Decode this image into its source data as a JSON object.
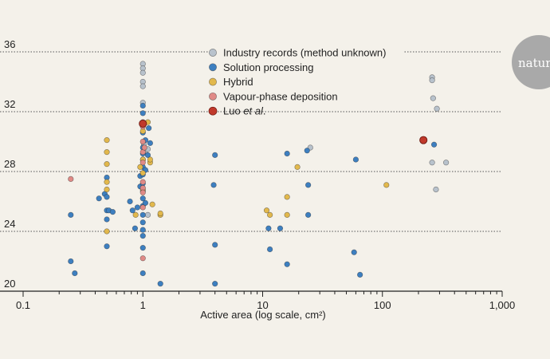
{
  "brand": {
    "logo_text": "nature"
  },
  "chart_data": {
    "type": "scatter",
    "title": "",
    "xlabel": "Active area (log scale, cm²)",
    "ylabel": "",
    "xscale": "log",
    "xlim": [
      0.1,
      1000
    ],
    "ylim": [
      20,
      37
    ],
    "x_ticks": [
      0.1,
      1,
      10,
      100,
      1000
    ],
    "x_tick_labels": [
      "0.1",
      "1",
      "10",
      "100",
      "1,000"
    ],
    "y_ticks": [
      20,
      24,
      28,
      32,
      36
    ],
    "y_tick_labels": [
      "20",
      "24",
      "28",
      "32",
      "36"
    ],
    "grid": "horizontal dotted",
    "legend_position": "top-center",
    "series": [
      {
        "name": "Industry records (method unknown)",
        "color": "#b8c2cc",
        "points": [
          {
            "x": 1.0,
            "y": 35.2
          },
          {
            "x": 1.0,
            "y": 34.9
          },
          {
            "x": 1.0,
            "y": 34.6
          },
          {
            "x": 1.0,
            "y": 34.0
          },
          {
            "x": 1.0,
            "y": 33.7
          },
          {
            "x": 1.0,
            "y": 32.6
          },
          {
            "x": 1.02,
            "y": 29.8
          },
          {
            "x": 1.05,
            "y": 29.4
          },
          {
            "x": 1.1,
            "y": 29.5
          },
          {
            "x": 1.1,
            "y": 25.1
          },
          {
            "x": 25,
            "y": 29.6
          },
          {
            "x": 260,
            "y": 34.3
          },
          {
            "x": 260,
            "y": 34.1
          },
          {
            "x": 265,
            "y": 32.9
          },
          {
            "x": 285,
            "y": 32.2
          },
          {
            "x": 260,
            "y": 28.6
          },
          {
            "x": 340,
            "y": 28.6
          },
          {
            "x": 280,
            "y": 26.8
          }
        ]
      },
      {
        "name": "Solution processing",
        "color": "#3d7fc0",
        "points": [
          {
            "x": 0.25,
            "y": 25.1
          },
          {
            "x": 0.25,
            "y": 22.0
          },
          {
            "x": 0.27,
            "y": 21.2
          },
          {
            "x": 0.43,
            "y": 26.2
          },
          {
            "x": 0.48,
            "y": 26.5
          },
          {
            "x": 0.5,
            "y": 27.6
          },
          {
            "x": 0.5,
            "y": 26.3
          },
          {
            "x": 0.5,
            "y": 25.4
          },
          {
            "x": 0.52,
            "y": 25.4
          },
          {
            "x": 0.5,
            "y": 24.8
          },
          {
            "x": 0.5,
            "y": 23.0
          },
          {
            "x": 0.56,
            "y": 25.3
          },
          {
            "x": 0.78,
            "y": 26.0
          },
          {
            "x": 0.82,
            "y": 25.4
          },
          {
            "x": 0.86,
            "y": 24.2
          },
          {
            "x": 0.9,
            "y": 25.6
          },
          {
            "x": 0.95,
            "y": 27.7
          },
          {
            "x": 0.95,
            "y": 27.0
          },
          {
            "x": 1.0,
            "y": 32.4
          },
          {
            "x": 1.0,
            "y": 31.9
          },
          {
            "x": 1.0,
            "y": 31.3
          },
          {
            "x": 1.0,
            "y": 30.6
          },
          {
            "x": 1.0,
            "y": 29.6
          },
          {
            "x": 1.0,
            "y": 29.2
          },
          {
            "x": 1.0,
            "y": 28.8
          },
          {
            "x": 1.0,
            "y": 28.3
          },
          {
            "x": 1.0,
            "y": 27.8
          },
          {
            "x": 1.0,
            "y": 27.2
          },
          {
            "x": 1.0,
            "y": 26.7
          },
          {
            "x": 1.0,
            "y": 26.2
          },
          {
            "x": 1.0,
            "y": 25.7
          },
          {
            "x": 1.0,
            "y": 25.1
          },
          {
            "x": 1.0,
            "y": 24.6
          },
          {
            "x": 1.0,
            "y": 24.1
          },
          {
            "x": 1.0,
            "y": 23.7
          },
          {
            "x": 1.0,
            "y": 22.9
          },
          {
            "x": 1.0,
            "y": 21.2
          },
          {
            "x": 1.05,
            "y": 30.1
          },
          {
            "x": 1.05,
            "y": 28.1
          },
          {
            "x": 1.05,
            "y": 25.9
          },
          {
            "x": 1.1,
            "y": 29.1
          },
          {
            "x": 1.12,
            "y": 30.9
          },
          {
            "x": 1.15,
            "y": 29.9
          },
          {
            "x": 1.4,
            "y": 20.5
          },
          {
            "x": 4.0,
            "y": 29.1
          },
          {
            "x": 3.9,
            "y": 27.1
          },
          {
            "x": 4.0,
            "y": 23.1
          },
          {
            "x": 4.0,
            "y": 20.5
          },
          {
            "x": 11.2,
            "y": 24.2
          },
          {
            "x": 11.5,
            "y": 22.8
          },
          {
            "x": 14.0,
            "y": 24.2
          },
          {
            "x": 16.0,
            "y": 29.2
          },
          {
            "x": 16.0,
            "y": 21.8
          },
          {
            "x": 23.5,
            "y": 29.4
          },
          {
            "x": 24.0,
            "y": 25.1
          },
          {
            "x": 24.0,
            "y": 27.1
          },
          {
            "x": 58.0,
            "y": 22.6
          },
          {
            "x": 60.0,
            "y": 28.8
          },
          {
            "x": 65.0,
            "y": 21.1
          },
          {
            "x": 270.0,
            "y": 29.8
          }
        ]
      },
      {
        "name": "Hybrid",
        "color": "#e2b84c",
        "points": [
          {
            "x": 0.5,
            "y": 30.1
          },
          {
            "x": 0.5,
            "y": 29.3
          },
          {
            "x": 0.5,
            "y": 28.5
          },
          {
            "x": 0.5,
            "y": 27.3
          },
          {
            "x": 0.5,
            "y": 26.8
          },
          {
            "x": 0.5,
            "y": 24.0
          },
          {
            "x": 0.87,
            "y": 25.1
          },
          {
            "x": 0.95,
            "y": 28.3
          },
          {
            "x": 1.0,
            "y": 28.8
          },
          {
            "x": 1.0,
            "y": 27.9
          },
          {
            "x": 1.0,
            "y": 26.8
          },
          {
            "x": 1.0,
            "y": 30.7
          },
          {
            "x": 1.1,
            "y": 31.3
          },
          {
            "x": 1.15,
            "y": 28.6
          },
          {
            "x": 1.15,
            "y": 28.8
          },
          {
            "x": 1.2,
            "y": 25.8
          },
          {
            "x": 1.4,
            "y": 25.1
          },
          {
            "x": 1.4,
            "y": 25.2
          },
          {
            "x": 10.8,
            "y": 25.4
          },
          {
            "x": 11.5,
            "y": 25.1
          },
          {
            "x": 16.0,
            "y": 25.1
          },
          {
            "x": 16.0,
            "y": 26.3
          },
          {
            "x": 19.5,
            "y": 28.3
          },
          {
            "x": 108.0,
            "y": 27.1
          }
        ]
      },
      {
        "name": "Vapour-phase deposition",
        "color": "#e08a86",
        "points": [
          {
            "x": 0.25,
            "y": 27.5
          },
          {
            "x": 1.0,
            "y": 31.0
          },
          {
            "x": 1.0,
            "y": 30.0
          },
          {
            "x": 1.0,
            "y": 29.3
          },
          {
            "x": 1.0,
            "y": 28.6
          },
          {
            "x": 1.0,
            "y": 27.3
          },
          {
            "x": 1.0,
            "y": 26.9
          },
          {
            "x": 1.0,
            "y": 26.6
          },
          {
            "x": 1.0,
            "y": 25.6
          },
          {
            "x": 1.0,
            "y": 22.2
          },
          {
            "x": 1.03,
            "y": 29.6
          }
        ]
      },
      {
        "name_parts": [
          "Luo ",
          "et al",
          "."
        ],
        "color": "#c0392b",
        "points": [
          {
            "x": 1.0,
            "y": 31.2
          },
          {
            "x": 220.0,
            "y": 30.1
          }
        ]
      }
    ]
  }
}
